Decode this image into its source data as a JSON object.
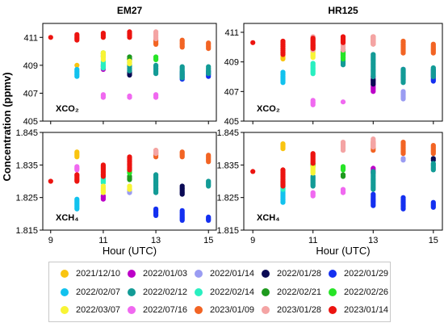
{
  "chart_data": {
    "type": "scatter",
    "panels": [
      {
        "id": "em27-xco2",
        "column_title": "EM27",
        "annotation": "XCO₂",
        "quantity": "xco2",
        "instrument": "em27",
        "xlim": [
          8.7,
          15.3
        ],
        "ylim": [
          405,
          412
        ],
        "yticks": [
          "405",
          "407",
          "409",
          "411"
        ],
        "show_ytick_labels": true,
        "show_xtick_labels": false
      },
      {
        "id": "hr125-xco2",
        "column_title": "HR125",
        "annotation": "XCO₂",
        "quantity": "xco2",
        "instrument": "hr125",
        "xlim": [
          8.7,
          15.3
        ],
        "ylim": [
          405,
          411.6
        ],
        "yticks": [
          "405",
          "407",
          "409",
          "411"
        ],
        "show_ytick_labels": true,
        "show_xtick_labels": false
      },
      {
        "id": "em27-xch4",
        "annotation": "XCH₄",
        "quantity": "xch4",
        "instrument": "em27",
        "xlim": [
          8.7,
          15.3
        ],
        "ylim": [
          1.815,
          1.845
        ],
        "yticks": [
          "1.815",
          "1.825",
          "1.835",
          "1.845"
        ],
        "show_ytick_labels": true,
        "show_xtick_labels": true
      },
      {
        "id": "hr125-xch4",
        "annotation": "XCH₄",
        "quantity": "xch4",
        "instrument": "hr125",
        "xlim": [
          8.7,
          15.3
        ],
        "ylim": [
          1.815,
          1.845
        ],
        "yticks": [
          "1.815",
          "1.825",
          "1.835",
          "1.845"
        ],
        "show_ytick_labels": true,
        "show_xtick_labels": true
      }
    ],
    "xticks": [
      "9",
      "11",
      "13",
      "15"
    ],
    "xlabel": "Hour (UTC)",
    "ylabel": "Concentration (ppmv)",
    "legend_placement": "bottom",
    "grid": false,
    "series": [
      {
        "name": "2021/12/10",
        "color": "#f9c410",
        "em27": {
          "xco2": [
            [
              10,
              409.0,
              409.0
            ]
          ],
          "xch4": [
            [
              10,
              1.8375,
              1.839
            ]
          ]
        },
        "hr125": {
          "xco2": [
            [
              10,
              409.2,
              409.4
            ]
          ],
          "xch4": [
            [
              10,
              1.84,
              1.8415
            ]
          ]
        }
      },
      {
        "name": "2022/01/03",
        "color": "#bc00c8",
        "em27": {
          "xco2": [
            [
              11,
              408.7,
              409.0
            ]
          ],
          "xch4": [
            [
              11,
              1.8245,
              1.8255
            ]
          ]
        },
        "hr125": {
          "xco2": [
            [
              13,
              407.0,
              408.0
            ]
          ],
          "xch4": [
            [
              13,
              1.8325,
              1.834
            ]
          ]
        }
      },
      {
        "name": "2022/01/14",
        "color": "#9a9cf2",
        "em27": {
          "xco2": [
            [
              12,
              409.2,
              409.6
            ]
          ],
          "xch4": [
            [
              12,
              1.8265,
              1.8275
            ]
          ]
        },
        "hr125": {
          "xco2": [
            [
              14,
              406.5,
              407.0
            ]
          ],
          "xch4": [
            [
              14,
              1.8365,
              1.837
            ]
          ]
        }
      },
      {
        "name": "2022/01/28",
        "color": "#0a0a55",
        "em27": {
          "xco2": [
            [
              12,
              408.3,
              408.6
            ]
          ],
          "xch4": [
            [
              14,
              1.826,
              1.8285
            ]
          ]
        },
        "hr125": {
          "xco2": [
            [
              13,
              407.5,
              407.8
            ]
          ],
          "xch4": [
            [
              15,
              1.8365,
              1.837
            ]
          ]
        }
      },
      {
        "name": "2022/01/29",
        "color": "#1430f0",
        "em27": {
          "xco2": [
            [
              14,
              408.0,
              408.5
            ],
            [
              15,
              408.2,
              408.6
            ]
          ],
          "xch4": [
            [
              13,
              1.8195,
              1.8215
            ],
            [
              14,
              1.818,
              1.821
            ],
            [
              15,
              1.818,
              1.819
            ]
          ]
        },
        "hr125": {
          "xco2": [
            [
              14,
              407.8,
              408.5
            ],
            [
              15,
              407.7,
              408.5
            ]
          ],
          "xch4": [
            [
              13,
              1.8225,
              1.826
            ],
            [
              14,
              1.8215,
              1.825
            ],
            [
              15,
              1.822,
              1.8235
            ]
          ]
        }
      },
      {
        "name": "2022/02/07",
        "color": "#12c2ee",
        "em27": {
          "xco2": [
            [
              10,
              408.2,
              408.7
            ]
          ],
          "xch4": [
            [
              10,
              1.8215,
              1.8245
            ]
          ]
        },
        "hr125": {
          "xco2": [
            [
              10,
              407.6,
              408.3
            ]
          ],
          "xch4": [
            [
              10,
              1.8235,
              1.8285
            ]
          ]
        }
      },
      {
        "name": "2022/02/12",
        "color": "#139b96",
        "em27": {
          "xco2": [
            [
              12,
              408.6,
              409.2
            ],
            [
              13,
              408.4,
              409.0
            ],
            [
              14,
              408.1,
              408.9
            ],
            [
              15,
              408.4,
              408.9
            ]
          ],
          "xch4": [
            [
              13,
              1.8265,
              1.832
            ],
            [
              15,
              1.8285,
              1.83
            ]
          ]
        },
        "hr125": {
          "xco2": [
            [
              12,
              408.8,
              409.8
            ],
            [
              13,
              408.0,
              409.5
            ],
            [
              14,
              407.6,
              408.5
            ],
            [
              15,
              408.0,
              408.6
            ]
          ],
          "xch4": [
            [
              11,
              1.8285,
              1.8315
            ],
            [
              13,
              1.8275,
              1.833
            ],
            [
              15,
              1.8335,
              1.8355
            ]
          ]
        }
      },
      {
        "name": "2022/02/14",
        "color": "#29efc0",
        "em27": {
          "xco2": [
            [
              11,
              408.8,
              409.3
            ]
          ],
          "xch4": [
            [
              11,
              1.8295,
              1.831
            ]
          ]
        },
        "hr125": {
          "xco2": [
            [
              11,
              408.2,
              408.9
            ]
          ],
          "xch4": [
            [
              10,
              1.8275,
              1.8305
            ]
          ]
        }
      },
      {
        "name": "2022/02/21",
        "color": "#1e9a1e",
        "em27": {
          "xco2": [
            [
              12,
              409.4,
              409.6
            ]
          ],
          "xch4": [
            [
              12,
              1.8305,
              1.8315
            ]
          ]
        },
        "hr125": {
          "xco2": [
            [
              12,
              409.5,
              409.8
            ]
          ],
          "xch4": [
            [
              12,
              1.8315,
              1.832
            ]
          ]
        }
      },
      {
        "name": "2022/02/26",
        "color": "#27e427",
        "em27": {
          "xco2": [
            [
              11,
              409.6,
              409.9
            ],
            [
              13,
              409.4,
              409.6
            ]
          ],
          "xch4": [
            [
              12,
              1.8325,
              1.8335
            ]
          ]
        },
        "hr125": {
          "xco2": [
            [
              11,
              409.8,
              410.1
            ],
            [
              12,
              409.2,
              409.6
            ]
          ],
          "xch4": [
            [
              11,
              1.8345,
              1.8355
            ],
            [
              12,
              1.8335,
              1.8345
            ]
          ]
        }
      },
      {
        "name": "2022/03/07",
        "color": "#f8f435",
        "em27": {
          "xco2": [
            [
              11,
              409.4,
              409.9
            ],
            [
              12,
              409.1,
              409.3
            ]
          ],
          "xch4": [
            [
              11,
              1.8265,
              1.8285
            ],
            [
              12,
              1.8275,
              1.8285
            ]
          ]
        },
        "hr125": {
          "xco2": [
            [
              11,
              409.3,
              409.7
            ]
          ],
          "xch4": [
            [
              11,
              1.8325,
              1.8345
            ]
          ]
        }
      },
      {
        "name": "2022/07/16",
        "color": "#f069f0",
        "em27": {
          "xco2": [
            [
              11,
              406.7,
              406.9
            ],
            [
              12,
              406.7,
              406.8
            ],
            [
              13,
              406.7,
              406.9
            ]
          ],
          "xch4": [
            [
              10,
              1.8335,
              1.8345
            ]
          ]
        },
        "hr125": {
          "xco2": [
            [
              11,
              406.1,
              406.4
            ],
            [
              12,
              406.3,
              406.3
            ]
          ],
          "xch4": [
            [
              11,
              1.8255,
              1.8265
            ],
            [
              12,
              1.8265,
              1.8275
            ]
          ]
        }
      },
      {
        "name": "2023/01/09",
        "color": "#f26424",
        "em27": {
          "xco2": [
            [
              13,
              410.5,
              410.8
            ],
            [
              14,
              410.3,
              410.8
            ],
            [
              15,
              410.2,
              410.6
            ]
          ],
          "xch4": [
            [
              13,
              1.8375,
              1.8395
            ],
            [
              14,
              1.8375,
              1.839
            ],
            [
              15,
              1.836,
              1.838
            ]
          ]
        },
        "hr125": {
          "xco2": [
            [
              13,
              410.2,
              410.7
            ],
            [
              14,
              409.6,
              410.4
            ],
            [
              15,
              409.6,
              410.2
            ]
          ],
          "xch4": [
            [
              13,
              1.8395,
              1.842
            ],
            [
              14,
              1.8385,
              1.842
            ],
            [
              15,
              1.8385,
              1.841
            ]
          ]
        }
      },
      {
        "name": "2023/01/28",
        "color": "#f4a4a4",
        "em27": {
          "xco2": [
            [
              13,
              410.9,
              411.4
            ]
          ],
          "xch4": [
            [
              13,
              1.8385,
              1.8395
            ]
          ]
        },
        "hr125": {
          "xco2": [
            [
              11,
              409.8,
              410.7
            ],
            [
              12,
              409.8,
              410.5
            ],
            [
              13,
              410.2,
              410.7
            ]
          ],
          "xch4": [
            [
              12,
              1.8395,
              1.842
            ],
            [
              13,
              1.8405,
              1.843
            ]
          ]
        }
      },
      {
        "name": "2023/01/14",
        "color": "#ec1410",
        "em27": {
          "xco2": [
            [
              9,
              411.0,
              411.0
            ],
            [
              10,
              410.8,
              411.2
            ],
            [
              11,
              411.0,
              411.3
            ],
            [
              12,
              411.0,
              411.4
            ]
          ],
          "xch4": [
            [
              9,
              1.83,
              1.83
            ],
            [
              10,
              1.83,
              1.832
            ],
            [
              11,
              1.8315,
              1.835
            ],
            [
              12,
              1.8335,
              1.8375
            ]
          ]
        },
        "hr125": {
          "xco2": [
            [
              9,
              410.3,
              410.3
            ],
            [
              10,
              409.5,
              410.4
            ],
            [
              11,
              409.9,
              410.6
            ],
            [
              12,
              410.3,
              410.7
            ]
          ],
          "xch4": [
            [
              9,
              1.833,
              1.833
            ],
            [
              10,
              1.8285,
              1.8335
            ],
            [
              11,
              1.8355,
              1.8385
            ]
          ]
        }
      }
    ]
  }
}
